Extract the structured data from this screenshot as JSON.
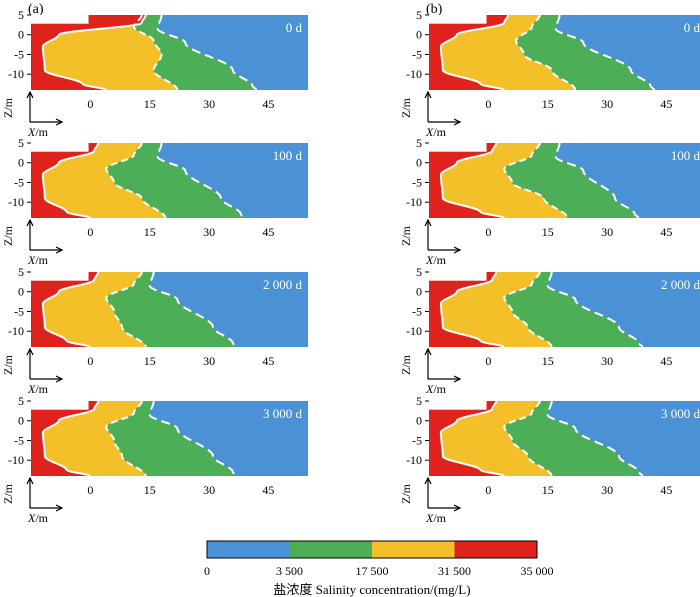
{
  "chart_data": {
    "type": "area",
    "colors": {
      "c0": "#4a91d6",
      "c1": "#4caf58",
      "c2": "#f3c02a",
      "c3": "#e0221c",
      "line": "#ffffff"
    },
    "x_ticks": [
      "0",
      "15",
      "30",
      "45"
    ],
    "y_ticks": [
      "5",
      "0",
      "-5",
      "-10"
    ],
    "xlim": [
      -15,
      55
    ],
    "ylim": [
      -14,
      5
    ],
    "xlabel_sym": "X",
    "xlabel_unit": "/m",
    "ylabel": "Z/m",
    "panels": [
      {
        "label": "(a)",
        "rows": [
          {
            "time": "0 d",
            "c3_d": 4,
            "c2_d": 22,
            "c1_d": 41,
            "shallow": [
              -4,
              14,
              14,
              18
            ]
          },
          {
            "time": "100 d",
            "c3_d": 0,
            "c2_d": 19,
            "c1_d": 38,
            "shallow": [
              -4,
              2,
              14,
              18
            ]
          },
          {
            "time": "2 000 d",
            "c3_d": 0,
            "c2_d": 14,
            "c1_d": 36,
            "shallow": [
              -4,
              2,
              14,
              16
            ]
          },
          {
            "time": "3 000 d",
            "c3_d": 0,
            "c2_d": 14,
            "c1_d": 36,
            "shallow": [
              -4,
              2,
              14,
              16
            ]
          }
        ]
      },
      {
        "label": "(b)",
        "rows": [
          {
            "time": "0 d",
            "c3_d": 4,
            "c2_d": 22,
            "c1_d": 41,
            "shallow": [
              -4,
              5,
              14,
              18
            ]
          },
          {
            "time": "100 d",
            "c3_d": 4,
            "c2_d": 20,
            "c1_d": 37,
            "shallow": [
              -4,
              2,
              14,
              18
            ]
          },
          {
            "time": "2 000 d",
            "c3_d": 4,
            "c2_d": 16,
            "c1_d": 38,
            "shallow": [
              -4,
              2,
              14,
              16
            ]
          },
          {
            "time": "3 000 d",
            "c3_d": 4,
            "c2_d": 16,
            "c1_d": 38,
            "shallow": [
              -4,
              2,
              14,
              16
            ]
          }
        ]
      }
    ],
    "colorbar": {
      "ticks": [
        "0",
        "3 500",
        "17 500",
        "31 500",
        "35 000"
      ],
      "title": "盐浓度 Salinity concentration/(mg/L)"
    }
  }
}
